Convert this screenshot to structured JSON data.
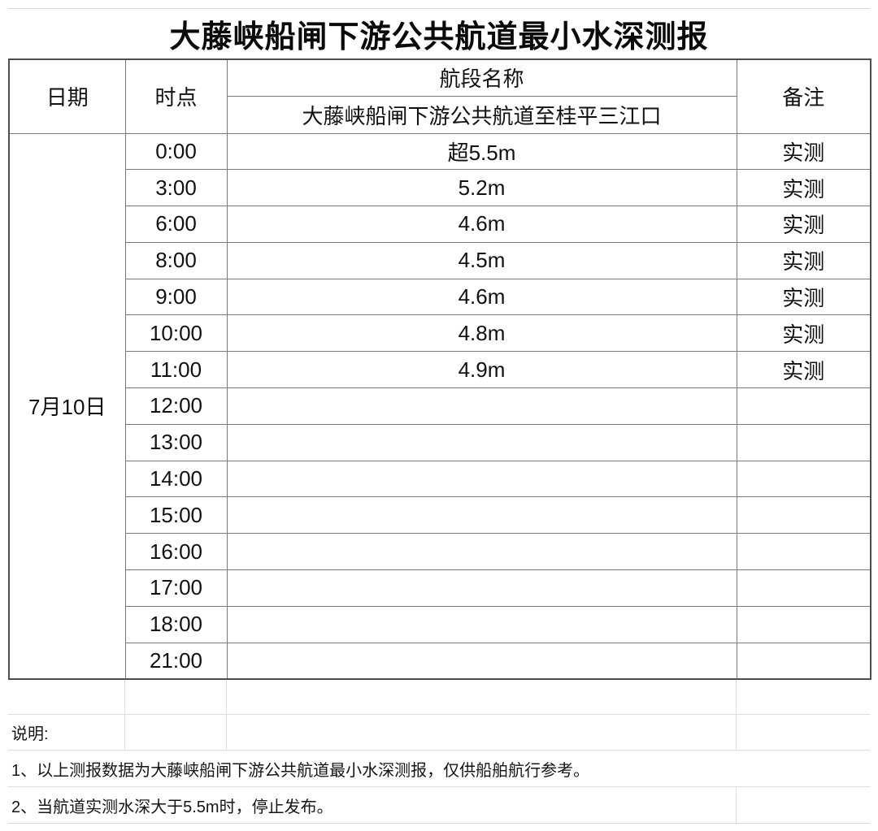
{
  "title": "大藤峡船闸下游公共航道最小水深测报",
  "table": {
    "headers": {
      "date": "日期",
      "time": "时点",
      "section": "航段名称",
      "remark": "备注"
    },
    "section_name": "大藤峡船闸下游公共航道至桂平三江口",
    "date": "7月10日",
    "rows": [
      {
        "time": "0:00",
        "depth": "超5.5m",
        "remark": "实测"
      },
      {
        "time": "3:00",
        "depth": "5.2m",
        "remark": "实测"
      },
      {
        "time": "6:00",
        "depth": "4.6m",
        "remark": "实测"
      },
      {
        "time": "8:00",
        "depth": "4.5m",
        "remark": "实测"
      },
      {
        "time": "9:00",
        "depth": "4.6m",
        "remark": "实测"
      },
      {
        "time": "10:00",
        "depth": "4.8m",
        "remark": "实测"
      },
      {
        "time": "11:00",
        "depth": "4.9m",
        "remark": "实测"
      },
      {
        "time": "12:00",
        "depth": "",
        "remark": ""
      },
      {
        "time": "13:00",
        "depth": "",
        "remark": ""
      },
      {
        "time": "14:00",
        "depth": "",
        "remark": ""
      },
      {
        "time": "15:00",
        "depth": "",
        "remark": ""
      },
      {
        "time": "16:00",
        "depth": "",
        "remark": ""
      },
      {
        "time": "17:00",
        "depth": "",
        "remark": ""
      },
      {
        "time": "18:00",
        "depth": "",
        "remark": ""
      },
      {
        "time": "21:00",
        "depth": "",
        "remark": ""
      }
    ]
  },
  "notes": {
    "label": "说明:",
    "items": [
      "1、以上测报数据为大藤峡船闸下游公共航道最小水深测报，仅供船舶航行参考。",
      "2、当航道实测水深大于5.5m时，停止发布。"
    ]
  },
  "colors": {
    "table_border_outer": "#4d4d4d",
    "table_border_inner": "#7a7a7a",
    "grid_line": "#dcdcdc",
    "text": "#111111"
  }
}
